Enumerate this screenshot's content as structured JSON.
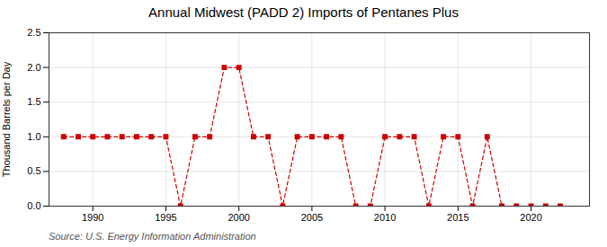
{
  "chart_data": {
    "type": "line",
    "title": "Annual Midwest (PADD 2) Imports of Pentanes Plus",
    "ylabel": "Thousand Barrels per Day",
    "source": "Source: U.S. Energy Information Administration",
    "x": [
      1988,
      1989,
      1990,
      1991,
      1992,
      1993,
      1994,
      1995,
      1996,
      1997,
      1998,
      1999,
      2000,
      2001,
      2002,
      2003,
      2004,
      2005,
      2006,
      2007,
      2008,
      2009,
      2010,
      2011,
      2012,
      2013,
      2014,
      2015,
      2016,
      2017,
      2018,
      2019,
      2020,
      2021,
      2022
    ],
    "values": [
      1.0,
      1.0,
      1.0,
      1.0,
      1.0,
      1.0,
      1.0,
      1.0,
      0.0,
      1.0,
      1.0,
      2.0,
      2.0,
      1.0,
      1.0,
      0.0,
      1.0,
      1.0,
      1.0,
      1.0,
      0.0,
      0.0,
      1.0,
      1.0,
      1.0,
      0.0,
      1.0,
      1.0,
      0.0,
      1.0,
      0.0,
      0.0,
      0.0,
      0.0,
      0.0
    ],
    "color": "#cc0000",
    "marker": "square",
    "line_style": "dashed",
    "grid": true,
    "xlim": [
      1987,
      2024
    ],
    "xticks": [
      1990,
      1995,
      2000,
      2005,
      2010,
      2015,
      2020
    ],
    "ylim": [
      0.0,
      2.5
    ],
    "yticks": [
      {
        "value": 0,
        "label": "0.0"
      },
      0.5,
      {
        "value": 1,
        "label": "1.0"
      },
      1.5,
      {
        "value": 2,
        "label": "2.0"
      },
      2.5
    ]
  }
}
